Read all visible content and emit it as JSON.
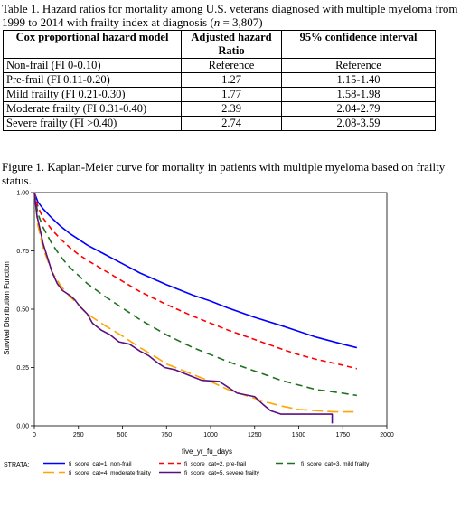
{
  "table": {
    "caption_parts": [
      "Table 1. Hazard ratios for mortality among U.S. veterans diagnosed with multiple myeloma from 1999 to 2014 with frailty index at diagnosis (",
      "n",
      " = 3,807)"
    ],
    "headers": [
      "Cox proportional hazard model",
      "Adjusted hazard Ratio",
      "95% confidence interval"
    ],
    "rows": [
      [
        "Non-frail (FI 0-0.10)",
        "Reference",
        "Reference"
      ],
      [
        "Pre-frail (FI 0.11-0.20)",
        "1.27",
        "1.15-1.40"
      ],
      [
        "Mild frailty (FI 0.21-0.30)",
        "1.77",
        "1.58-1.98"
      ],
      [
        "Moderate frailty (FI 0.31-0.40)",
        "2.39",
        "2.04-2.79"
      ],
      [
        "Severe frailty (FI >0.40)",
        "2.74",
        "2.08-3.59"
      ]
    ]
  },
  "figure": {
    "caption": "Figure 1. Kaplan-Meier curve for mortality in patients with multiple myeloma based on frailty status."
  },
  "chart_data": {
    "type": "line",
    "title": "",
    "xlabel": "five_yr_fu_days",
    "ylabel": "Survival Distribution Function",
    "xlim": [
      0,
      2000
    ],
    "ylim": [
      0,
      1
    ],
    "x_ticks": [
      "0",
      "250",
      "500",
      "750",
      "1000",
      "1250",
      "1500",
      "1750",
      "2000"
    ],
    "y_ticks": [
      "0.00",
      "0.25",
      "0.50",
      "0.75",
      "1.00"
    ],
    "grid": false,
    "legend": {
      "title": "STRATA:",
      "placement": "bottom"
    },
    "series": [
      {
        "name": "fi_score_cat=1. non-frail",
        "color": "#0000ff",
        "dash": "solid",
        "points": [
          [
            0,
            1.0
          ],
          [
            20,
            0.96
          ],
          [
            50,
            0.93
          ],
          [
            100,
            0.89
          ],
          [
            150,
            0.855
          ],
          [
            200,
            0.825
          ],
          [
            250,
            0.8
          ],
          [
            300,
            0.775
          ],
          [
            400,
            0.735
          ],
          [
            500,
            0.695
          ],
          [
            600,
            0.655
          ],
          [
            750,
            0.605
          ],
          [
            900,
            0.56
          ],
          [
            1000,
            0.535
          ],
          [
            1100,
            0.505
          ],
          [
            1250,
            0.465
          ],
          [
            1400,
            0.43
          ],
          [
            1500,
            0.405
          ],
          [
            1600,
            0.38
          ],
          [
            1750,
            0.35
          ],
          [
            1830,
            0.335
          ]
        ]
      },
      {
        "name": "fi_score_cat=2. pre-frail",
        "color": "#ff0000",
        "dash": "6 4",
        "points": [
          [
            0,
            1.0
          ],
          [
            20,
            0.94
          ],
          [
            50,
            0.89
          ],
          [
            100,
            0.84
          ],
          [
            150,
            0.8
          ],
          [
            200,
            0.765
          ],
          [
            250,
            0.735
          ],
          [
            300,
            0.71
          ],
          [
            400,
            0.665
          ],
          [
            500,
            0.62
          ],
          [
            600,
            0.575
          ],
          [
            750,
            0.52
          ],
          [
            900,
            0.47
          ],
          [
            1000,
            0.44
          ],
          [
            1100,
            0.41
          ],
          [
            1250,
            0.37
          ],
          [
            1400,
            0.33
          ],
          [
            1500,
            0.305
          ],
          [
            1600,
            0.285
          ],
          [
            1750,
            0.26
          ],
          [
            1830,
            0.245
          ]
        ]
      },
      {
        "name": "fi_score_cat=3. mild frailty",
        "color": "#207020",
        "dash": "8 5",
        "points": [
          [
            0,
            1.0
          ],
          [
            20,
            0.91
          ],
          [
            50,
            0.85
          ],
          [
            100,
            0.78
          ],
          [
            150,
            0.725
          ],
          [
            200,
            0.68
          ],
          [
            250,
            0.645
          ],
          [
            300,
            0.61
          ],
          [
            400,
            0.555
          ],
          [
            500,
            0.505
          ],
          [
            600,
            0.455
          ],
          [
            750,
            0.39
          ],
          [
            900,
            0.335
          ],
          [
            1000,
            0.305
          ],
          [
            1100,
            0.275
          ],
          [
            1250,
            0.235
          ],
          [
            1400,
            0.195
          ],
          [
            1500,
            0.175
          ],
          [
            1600,
            0.155
          ],
          [
            1750,
            0.14
          ],
          [
            1830,
            0.13
          ]
        ]
      },
      {
        "name": "fi_score_cat=4. moderate frailty",
        "color": "#ffa500",
        "dash": "12 5",
        "points": [
          [
            0,
            1.0
          ],
          [
            20,
            0.86
          ],
          [
            50,
            0.76
          ],
          [
            100,
            0.66
          ],
          [
            150,
            0.6
          ],
          [
            200,
            0.555
          ],
          [
            250,
            0.52
          ],
          [
            300,
            0.48
          ],
          [
            350,
            0.455
          ],
          [
            400,
            0.43
          ],
          [
            500,
            0.385
          ],
          [
            600,
            0.335
          ],
          [
            700,
            0.29
          ],
          [
            750,
            0.265
          ],
          [
            850,
            0.235
          ],
          [
            950,
            0.205
          ],
          [
            1000,
            0.19
          ],
          [
            1100,
            0.155
          ],
          [
            1200,
            0.13
          ],
          [
            1300,
            0.105
          ],
          [
            1400,
            0.085
          ],
          [
            1500,
            0.07
          ],
          [
            1600,
            0.065
          ],
          [
            1700,
            0.06
          ],
          [
            1830,
            0.06
          ]
        ]
      },
      {
        "name": "fi_score_cat=5. severe frailty",
        "color": "#5a1080",
        "dash": "solid",
        "points": [
          [
            0,
            1.0
          ],
          [
            15,
            0.9
          ],
          [
            30,
            0.85
          ],
          [
            50,
            0.78
          ],
          [
            75,
            0.72
          ],
          [
            100,
            0.66
          ],
          [
            130,
            0.61
          ],
          [
            160,
            0.58
          ],
          [
            200,
            0.56
          ],
          [
            230,
            0.54
          ],
          [
            260,
            0.51
          ],
          [
            300,
            0.48
          ],
          [
            330,
            0.44
          ],
          [
            380,
            0.41
          ],
          [
            430,
            0.39
          ],
          [
            480,
            0.36
          ],
          [
            540,
            0.35
          ],
          [
            600,
            0.32
          ],
          [
            650,
            0.3
          ],
          [
            700,
            0.27
          ],
          [
            740,
            0.25
          ],
          [
            800,
            0.24
          ],
          [
            850,
            0.225
          ],
          [
            900,
            0.21
          ],
          [
            950,
            0.195
          ],
          [
            1050,
            0.19
          ],
          [
            1100,
            0.165
          ],
          [
            1150,
            0.14
          ],
          [
            1250,
            0.125
          ],
          [
            1300,
            0.09
          ],
          [
            1340,
            0.065
          ],
          [
            1400,
            0.05
          ],
          [
            1500,
            0.05
          ],
          [
            1580,
            0.05
          ],
          [
            1650,
            0.05
          ],
          [
            1690,
            0.05
          ],
          [
            1690,
            0.01
          ]
        ]
      }
    ]
  }
}
